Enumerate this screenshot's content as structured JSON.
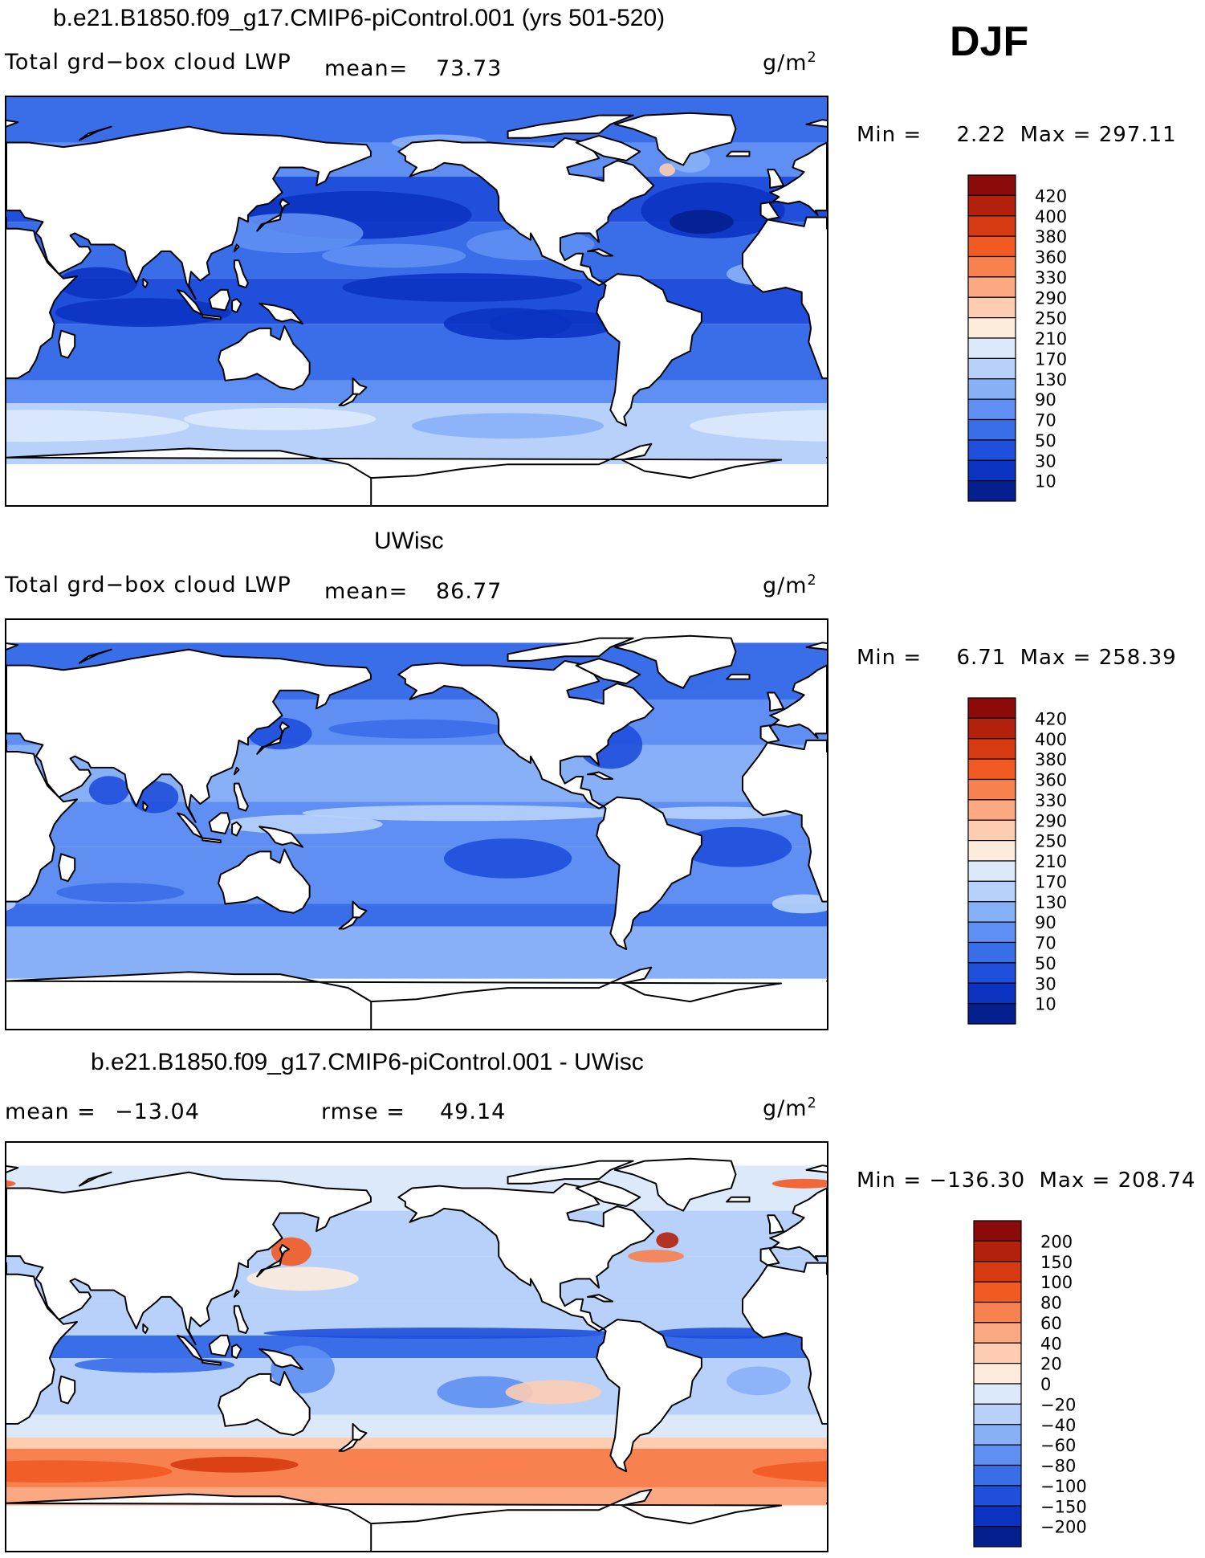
{
  "season": "DJF",
  "panels": [
    {
      "title": "b.e21.B1850.f09_g17.CMIP6-piControl.001 (yrs 501-520)",
      "variable": "Total grd−box cloud LWP",
      "stat_left": "mean=",
      "stat_left_value": "73.73",
      "stat_right": "",
      "stat_right_value": "",
      "units": "g/m",
      "units_sup": "2",
      "min_label": "Min =",
      "min_value": "2.22",
      "max_label": "Max =",
      "max_value": "297.11",
      "scale": "abs",
      "colorbar_labels": [
        "420",
        "400",
        "380",
        "360",
        "330",
        "290",
        "250",
        "210",
        "170",
        "130",
        "90",
        "70",
        "50",
        "30",
        "10"
      ]
    },
    {
      "title": "UWisc",
      "variable": "Total grd−box cloud LWP",
      "stat_left": "mean=",
      "stat_left_value": "86.77",
      "stat_right": "",
      "stat_right_value": "",
      "units": "g/m",
      "units_sup": "2",
      "min_label": "Min =",
      "min_value": "6.71",
      "max_label": "Max =",
      "max_value": "258.39",
      "scale": "abs",
      "colorbar_labels": [
        "420",
        "400",
        "380",
        "360",
        "330",
        "290",
        "250",
        "210",
        "170",
        "130",
        "90",
        "70",
        "50",
        "30",
        "10"
      ]
    },
    {
      "title": "b.e21.B1850.f09_g17.CMIP6-piControl.001 - UWisc",
      "variable": "",
      "stat_left": "mean =",
      "stat_left_value": "−13.04",
      "stat_right": "rmse =",
      "stat_right_value": "49.14",
      "units": "g/m",
      "units_sup": "2",
      "min_label": "Min =",
      "min_value": "−136.30",
      "max_label": "Max =",
      "max_value": "208.74",
      "scale": "diff",
      "colorbar_labels": [
        "200",
        "150",
        "100",
        "80",
        "60",
        "40",
        "20",
        "0",
        "−20",
        "−40",
        "−60",
        "−80",
        "−100",
        "−150",
        "−200"
      ]
    }
  ],
  "palettes": {
    "abs": [
      "#8b0a0a",
      "#b3200c",
      "#d63a12",
      "#f25a24",
      "#f7814f",
      "#fba883",
      "#fdccb1",
      "#fdebdc",
      "#dbe9fb",
      "#b7d1fa",
      "#88b0f7",
      "#5f8ff2",
      "#3a6de8",
      "#1f4fdb",
      "#0b33c2",
      "#061f8f"
    ],
    "diff": [
      "#8b0a0a",
      "#b3200c",
      "#d63a12",
      "#f25a24",
      "#f7814f",
      "#fba883",
      "#fdccb1",
      "#fdebdc",
      "#dbe9fb",
      "#b7d1fa",
      "#88b0f7",
      "#5f8ff2",
      "#3a6de8",
      "#1f4fdb",
      "#0b33c2",
      "#061f8f"
    ]
  }
}
